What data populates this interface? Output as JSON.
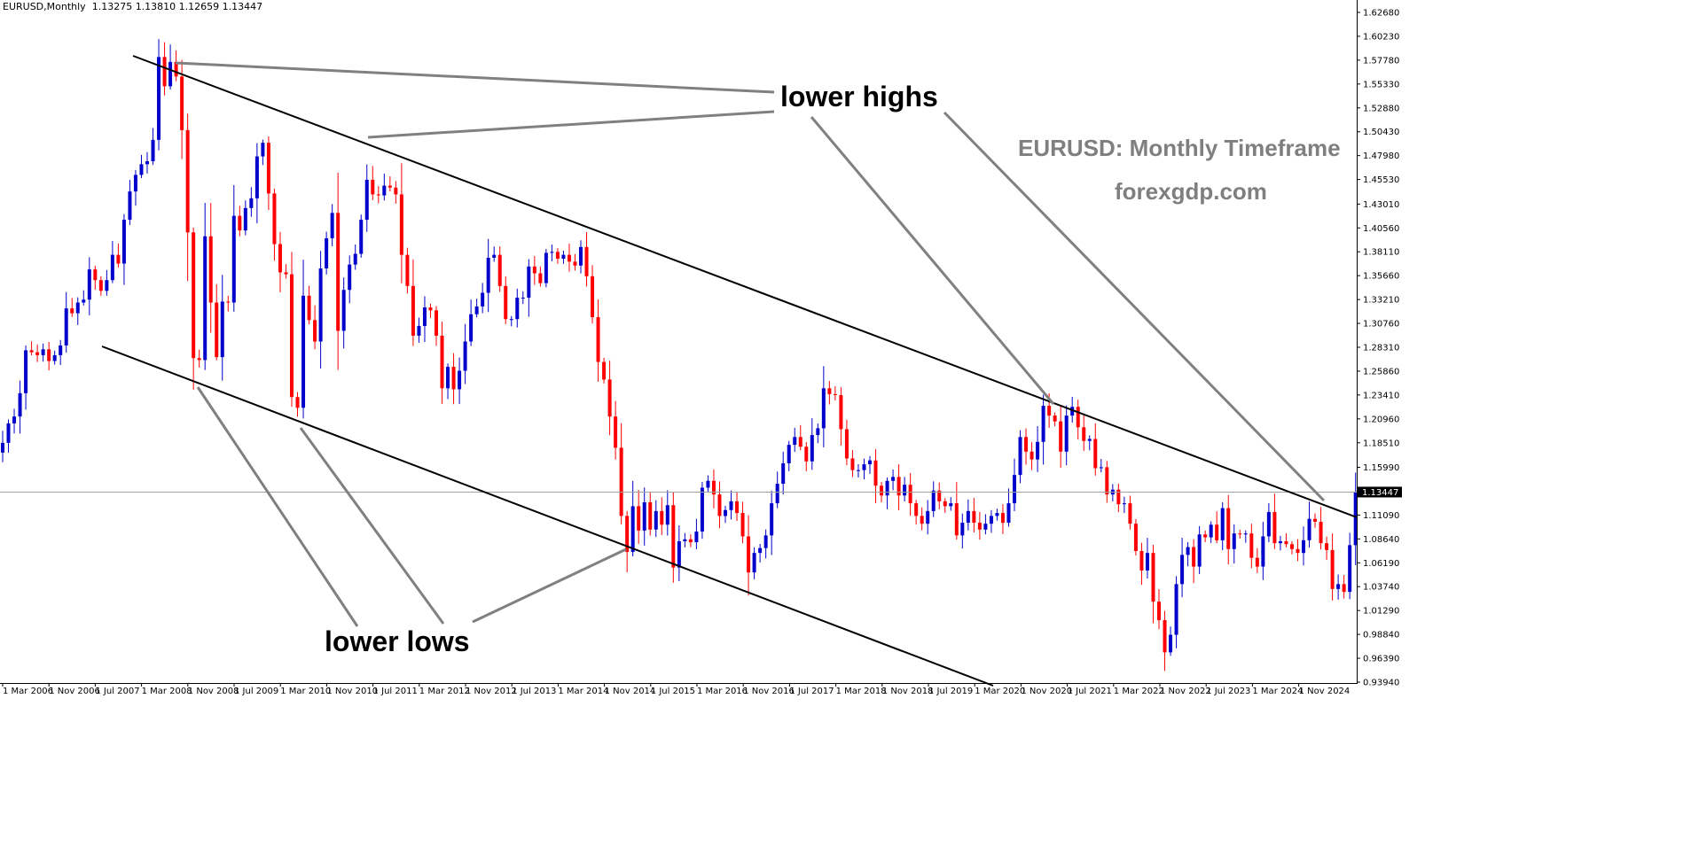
{
  "window": {
    "symbol": "EURUSD,Monthly",
    "ohlc": "1.13275 1.13810 1.12659 1.13447"
  },
  "annotations": {
    "lower_highs": "lower highs",
    "lower_lows": "lower lows",
    "title": "EURUSD: Monthly Timeframe",
    "site": "forexgdp.com"
  },
  "colors": {
    "bull": "#0000cc",
    "bear": "#ff0000",
    "trendline": "#000000",
    "pointer": "#808080",
    "current_price_line": "#a0a0a0"
  },
  "chart_data": {
    "type": "candlestick",
    "timeframe": "Monthly",
    "symbol": "EURUSD",
    "ylim": [
      0.9394,
      1.6268
    ],
    "y_ticks": [
      "1.62680",
      "1.60230",
      "1.57780",
      "1.55330",
      "1.52880",
      "1.50430",
      "1.47980",
      "1.45530",
      "1.43010",
      "1.40560",
      "1.38110",
      "1.35660",
      "1.33210",
      "1.30760",
      "1.28310",
      "1.25860",
      "1.23410",
      "1.20960",
      "1.18510",
      "1.15990",
      "1.13447",
      "1.11090",
      "1.08640",
      "1.06190",
      "1.03740",
      "1.01290",
      "0.98840",
      "0.96390",
      "0.93940"
    ],
    "current_price": "1.13447",
    "x_ticks": [
      "1 Mar 2006",
      "1 Nov 2006",
      "1 Jul 2007",
      "1 Mar 2008",
      "1 Nov 2008",
      "1 Jul 2009",
      "1 Mar 2010",
      "1 Nov 2010",
      "1 Jul 2011",
      "1 Mar 2012",
      "1 Nov 2012",
      "1 Jul 2013",
      "1 Mar 2014",
      "1 Nov 2014",
      "1 Jul 2015",
      "1 Mar 2016",
      "1 Nov 2016",
      "1 Jul 2017",
      "1 Mar 2018",
      "1 Nov 2018",
      "1 Jul 2019",
      "1 Mar 2020",
      "1 Nov 2020",
      "1 Jul 2021",
      "1 Mar 2022",
      "1 Nov 2022",
      "1 Jul 2023",
      "1 Mar 2024",
      "1 Nov 2024"
    ],
    "first_bar": "2005-12",
    "closes": [
      1.185,
      1.205,
      1.212,
      1.236,
      1.28,
      1.278,
      1.275,
      1.281,
      1.269,
      1.275,
      1.285,
      1.323,
      1.318,
      1.329,
      1.332,
      1.363,
      1.352,
      1.341,
      1.352,
      1.378,
      1.369,
      1.414,
      1.443,
      1.46,
      1.471,
      1.474,
      1.496,
      1.581,
      1.551,
      1.576,
      1.561,
      1.506,
      1.401,
      1.272,
      1.27,
      1.397,
      1.329,
      1.273,
      1.33,
      1.329,
      1.418,
      1.403,
      1.426,
      1.436,
      1.479,
      1.493,
      1.441,
      1.389,
      1.36,
      1.358,
      1.232,
      1.221,
      1.336,
      1.311,
      1.289,
      1.364,
      1.395,
      1.421,
      1.3,
      1.342,
      1.368,
      1.379,
      1.414,
      1.455,
      1.44,
      1.439,
      1.449,
      1.447,
      1.44,
      1.378,
      1.346,
      1.295,
      1.305,
      1.324,
      1.321,
      1.295,
      1.241,
      1.263,
      1.24,
      1.259,
      1.289,
      1.317,
      1.325,
      1.339,
      1.375,
      1.378,
      1.346,
      1.312,
      1.312,
      1.334,
      1.334,
      1.366,
      1.359,
      1.349,
      1.38,
      1.381,
      1.374,
      1.378,
      1.371,
      1.367,
      1.386,
      1.356,
      1.314,
      1.268,
      1.25,
      1.212,
      1.18,
      1.11,
      1.073,
      1.12,
      1.095,
      1.124,
      1.096,
      1.115,
      1.101,
      1.121,
      1.057,
      1.084,
      1.086,
      1.083,
      1.094,
      1.139,
      1.146,
      1.132,
      1.11,
      1.116,
      1.125,
      1.113,
      1.089,
      1.052,
      1.072,
      1.077,
      1.09,
      1.123,
      1.143,
      1.164,
      1.183,
      1.191,
      1.181,
      1.166,
      1.193,
      1.2,
      1.241,
      1.235,
      1.234,
      1.199,
      1.169,
      1.157,
      1.157,
      1.163,
      1.167,
      1.141,
      1.131,
      1.146,
      1.15,
      1.131,
      1.142,
      1.123,
      1.11,
      1.102,
      1.115,
      1.136,
      1.125,
      1.12,
      1.123,
      1.09,
      1.103,
      1.115,
      1.103,
      1.096,
      1.102,
      1.11,
      1.113,
      1.103,
      1.123,
      1.152,
      1.191,
      1.176,
      1.168,
      1.186,
      1.223,
      1.213,
      1.207,
      1.176,
      1.213,
      1.222,
      1.201,
      1.187,
      1.189,
      1.159,
      1.16,
      1.132,
      1.137,
      1.122,
      1.123,
      1.102,
      1.074,
      1.054,
      1.072,
      1.022,
      1.003,
      0.97,
      0.988,
      1.04,
      1.07,
      1.078,
      1.058,
      1.091,
      1.088,
      1.101,
      1.085,
      1.118,
      1.076,
      1.092,
      1.091,
      1.092,
      1.067,
      1.058,
      1.089,
      1.114,
      1.082,
      1.084,
      1.081,
      1.076,
      1.072,
      1.085,
      1.107,
      1.104,
      1.082,
      1.075,
      1.035,
      1.04,
      1.032,
      1.08,
      1.135
    ]
  }
}
